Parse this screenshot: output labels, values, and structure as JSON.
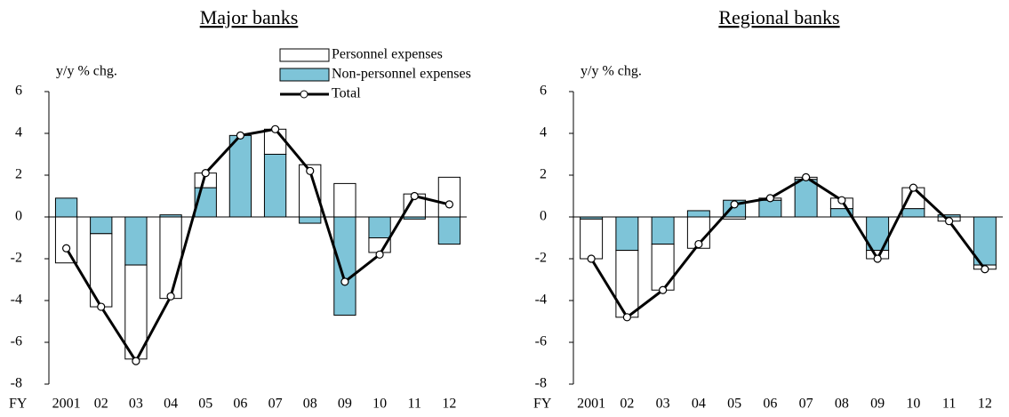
{
  "chart_data": [
    {
      "type": "bar",
      "title": "Major banks",
      "y_label": "y/y % chg.",
      "x_label": "FY",
      "categories": [
        "2001",
        "02",
        "03",
        "04",
        "05",
        "06",
        "07",
        "08",
        "09",
        "10",
        "11",
        "12"
      ],
      "series": [
        {
          "name": "Personnel expenses",
          "type": "bar",
          "color": "#ffffff",
          "values": [
            -2.2,
            -3.5,
            -4.5,
            -3.9,
            0.7,
            0,
            1.2,
            2.5,
            1.6,
            -0.7,
            1.1,
            1.9
          ]
        },
        {
          "name": "Non-personnel expenses",
          "type": "bar",
          "color": "#7ec4d8",
          "values": [
            0.9,
            -0.8,
            -2.3,
            0.1,
            1.4,
            3.9,
            3.0,
            -0.3,
            -4.7,
            -1.0,
            -0.1,
            -1.3
          ]
        },
        {
          "name": "Total",
          "type": "line",
          "color": "#000000",
          "values": [
            -1.5,
            -4.3,
            -6.9,
            -3.8,
            2.1,
            3.9,
            4.2,
            2.2,
            -3.1,
            -1.8,
            1.0,
            0.6
          ]
        }
      ],
      "ylim": [
        -8,
        6
      ],
      "yticks": [
        -8,
        -6,
        -4,
        -2,
        0,
        2,
        4,
        6
      ],
      "legend": "upper center"
    },
    {
      "type": "bar",
      "title": "Regional banks",
      "y_label": "y/y % chg.",
      "x_label": "FY",
      "categories": [
        "2001",
        "02",
        "03",
        "04",
        "05",
        "06",
        "07",
        "08",
        "09",
        "10",
        "11",
        "12"
      ],
      "series": [
        {
          "type": "bar",
          "color": "#ffffff",
          "values": [
            -1.9,
            -3.2,
            -2.2,
            -1.5,
            -0.1,
            0.1,
            0.1,
            0.5,
            -0.4,
            1.0,
            -0.2,
            -0.2
          ]
        },
        {
          "type": "bar",
          "color": "#7ec4d8",
          "values": [
            -0.1,
            -1.6,
            -1.3,
            0.3,
            0.8,
            0.8,
            1.8,
            0.4,
            -1.6,
            0.4,
            0.1,
            -2.3
          ]
        },
        {
          "type": "line",
          "color": "#000000",
          "values": [
            -2.0,
            -4.8,
            -3.5,
            -1.3,
            0.6,
            0.9,
            1.9,
            0.8,
            -2.0,
            1.4,
            -0.2,
            -2.5
          ]
        }
      ],
      "ylim": [
        -8,
        6
      ],
      "yticks": [
        -8,
        -6,
        -4,
        -2,
        0,
        2,
        4,
        6
      ]
    }
  ]
}
